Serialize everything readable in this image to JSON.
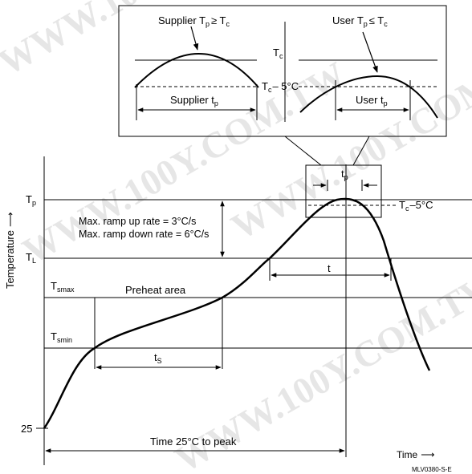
{
  "watermark": "WWW.100Y.COM.TW",
  "inset_left": {
    "title_main": "Supplier T",
    "title_sub": "p",
    "title_rel": "≥ T",
    "title_sub2": "c",
    "span_label_main": "Supplier t",
    "span_label_sub": "p"
  },
  "inset_right": {
    "title_main": "User T",
    "title_sub": "p",
    "title_rel": "≤ T",
    "title_sub2": "c",
    "span_label_main": "User t",
    "span_label_sub": "p"
  },
  "inset_labels": {
    "tc_main": "T",
    "tc_sub": "c",
    "tc5_main": "T",
    "tc5_sub": "c",
    "tc5_rest": "– 5°C"
  },
  "axis": {
    "y_title": "Temperature",
    "x_title": "Time",
    "arrow_glyph": "⟶"
  },
  "levels": {
    "tp_main": "T",
    "tp_sub": "p",
    "tl_main": "T",
    "tl_sub": "L",
    "tsmax_main": "T",
    "tsmax_sub": "smax",
    "tsmin_main": "T",
    "tsmin_sub": "smin",
    "ambient": "25"
  },
  "annotations": {
    "ramp_up": "Max. ramp up rate = 3°C/s",
    "ramp_down": "Max. ramp down rate = 6°C/s",
    "preheat": "Preheat area",
    "ts_main": "t",
    "ts_sub": "S",
    "t_label": "t",
    "tp_top_main": "t",
    "tp_top_sub": "p",
    "tc5_main": "T",
    "tc5_sub": "c",
    "tc5_rest": "–5°C",
    "time_to_peak": "Time 25°C to peak",
    "code": "MLV0380-S-E"
  }
}
